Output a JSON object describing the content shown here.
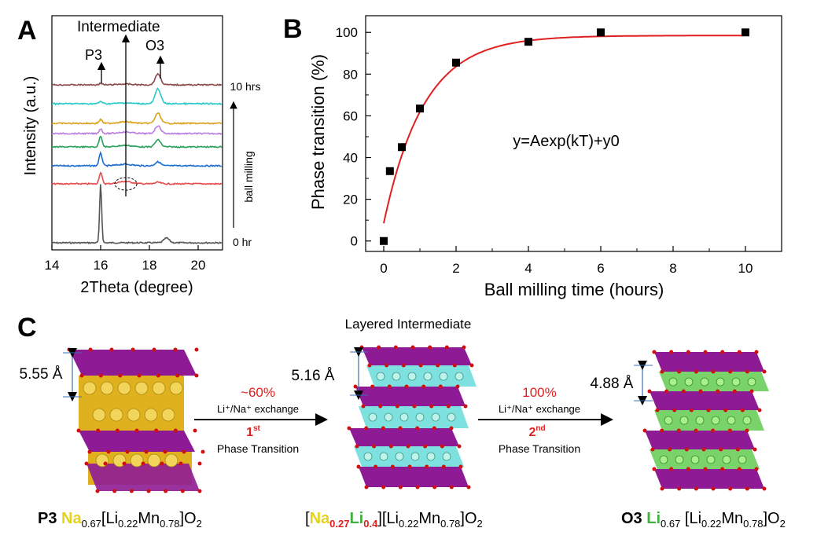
{
  "panelA": {
    "label": "A",
    "title": "Intermediate",
    "p3": "P3",
    "o3": "O3",
    "xlabel": "2Theta (degree)",
    "ylabel": "Intensity (a.u.)",
    "top_time": "10 hrs",
    "bottom_time": "0 hr",
    "arrow_label": "ball milling",
    "colors": [
      "#555555",
      "#e84a4a",
      "#1a6ccf",
      "#2aa15a",
      "#b97ee0",
      "#d9a21a",
      "#27c9c9",
      "#8a4a4a"
    ]
  },
  "panelB": {
    "label": "B",
    "equation": "y=Aexp(kT)+y0",
    "fit_color": "#e02020"
  },
  "chart_data": [
    {
      "type": "line",
      "title": "",
      "xlabel": "2Theta (degree)",
      "ylabel": "Intensity (a.u.)",
      "xlim": [
        14,
        21
      ],
      "x_ticks": [
        14,
        16,
        18,
        20
      ],
      "series_labels": [
        "0 hr",
        "10 hrs"
      ],
      "peaks": [
        {
          "name": "P3",
          "position": 16.0
        },
        {
          "name": "Intermediate",
          "position": 17.0
        },
        {
          "name": "O3",
          "position": 18.4
        }
      ]
    },
    {
      "type": "scatter",
      "title": "",
      "xlabel": "Ball milling time (hours)",
      "ylabel": "Phase transition (%)",
      "xlim": [
        -0.5,
        11
      ],
      "ylim": [
        -5,
        108
      ],
      "x_ticks": [
        0,
        2,
        4,
        6,
        8,
        10
      ],
      "y_ticks": [
        0,
        20,
        40,
        60,
        80,
        100
      ],
      "x": [
        0,
        0.17,
        0.5,
        1,
        2,
        4,
        6,
        10
      ],
      "y": [
        0,
        33.5,
        45,
        63.5,
        85.5,
        95.5,
        100,
        100
      ],
      "fit": {
        "equation": "y=Aexp(kT)+y0",
        "A": -90,
        "k": -0.9,
        "y0": 98.5
      }
    }
  ],
  "panelC": {
    "label": "C",
    "title": "Layered Intermediate",
    "d1": "5.55 Å",
    "d2": "5.16 Å",
    "d3": "4.88 Å",
    "step1": {
      "pct": "~60%",
      "exchange": "Li⁺/Na⁺ exchange",
      "ordinal": "1",
      "sup": "st",
      "phase": "Phase Transition"
    },
    "step2": {
      "pct": "100%",
      "exchange": "Li⁺/Na⁺ exchange",
      "ordinal": "2",
      "sup": "nd",
      "phase": "Phase Transition"
    },
    "formula1": {
      "tag": "P3",
      "na": "Na",
      "na_sub": "0.67",
      "rest": "[Li",
      "li_sub": "0.22",
      "mn": "Mn",
      "mn_sub": "0.78",
      "end": "]O",
      "o_sub": "2"
    },
    "formula2": {
      "open": "[",
      "na": "Na",
      "na_sub": "0.27",
      "li": "Li",
      "li_sub": "0.4",
      "rest": "][Li",
      "li2_sub": "0.22",
      "mn": "Mn",
      "mn_sub": "0.78",
      "end": "]O",
      "o_sub": "2"
    },
    "formula3": {
      "tag": "O3",
      "li": "Li",
      "li_sub": "0.67",
      "rest": "[Li",
      "li2_sub": "0.22",
      "mn": "Mn",
      "mn_sub": "0.78",
      "end": "]O",
      "o_sub": "2"
    }
  }
}
